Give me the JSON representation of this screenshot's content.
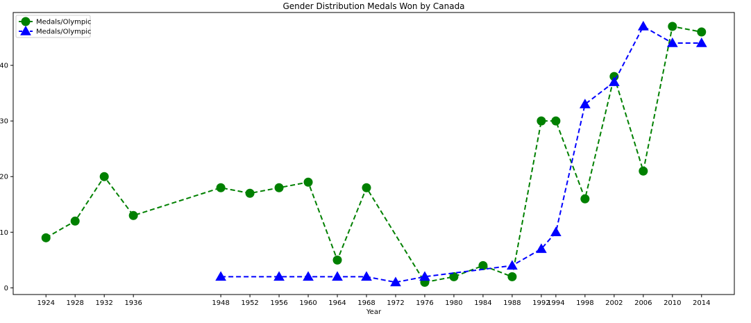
{
  "chart_data": {
    "type": "line",
    "title": "Gender Distribution Medals Won by Canada",
    "xlabel": "Year",
    "ylabel": "",
    "x_ticks": [
      "1924",
      "1928",
      "1932",
      "1936",
      "1948",
      "1952",
      "1956",
      "1960",
      "1964",
      "1968",
      "1972",
      "1976",
      "1980",
      "1984",
      "1988",
      "1992",
      "1994",
      "1998",
      "2002",
      "2006",
      "2010",
      "2014"
    ],
    "y_ticks": [
      "0",
      "10",
      "20",
      "30",
      "40"
    ],
    "ylim": [
      -1.2,
      49.5
    ],
    "xlim": [
      1919.5,
      2018.5
    ],
    "grid": false,
    "legend": "top-left",
    "series": [
      {
        "name": "Medals/Olympic",
        "color": "#008000",
        "marker": "circle",
        "linestyle": "dashed",
        "points": [
          {
            "x": 1924,
            "y": 9
          },
          {
            "x": 1928,
            "y": 12
          },
          {
            "x": 1932,
            "y": 20
          },
          {
            "x": 1936,
            "y": 13
          },
          {
            "x": 1948,
            "y": 18
          },
          {
            "x": 1952,
            "y": 17
          },
          {
            "x": 1956,
            "y": 18
          },
          {
            "x": 1960,
            "y": 19
          },
          {
            "x": 1964,
            "y": 5
          },
          {
            "x": 1968,
            "y": 18
          },
          {
            "x": 1976,
            "y": 1
          },
          {
            "x": 1980,
            "y": 2
          },
          {
            "x": 1984,
            "y": 4
          },
          {
            "x": 1988,
            "y": 2
          },
          {
            "x": 1992,
            "y": 30
          },
          {
            "x": 1994,
            "y": 30
          },
          {
            "x": 1998,
            "y": 16
          },
          {
            "x": 2002,
            "y": 38
          },
          {
            "x": 2006,
            "y": 21
          },
          {
            "x": 2010,
            "y": 47
          },
          {
            "x": 2014,
            "y": 46
          }
        ]
      },
      {
        "name": "Medals/Olympic",
        "color": "#0000ff",
        "marker": "triangle",
        "linestyle": "dashed",
        "points": [
          {
            "x": 1948,
            "y": 2
          },
          {
            "x": 1956,
            "y": 2
          },
          {
            "x": 1960,
            "y": 2
          },
          {
            "x": 1964,
            "y": 2
          },
          {
            "x": 1968,
            "y": 2
          },
          {
            "x": 1972,
            "y": 1
          },
          {
            "x": 1976,
            "y": 2
          },
          {
            "x": 1988,
            "y": 4
          },
          {
            "x": 1992,
            "y": 7
          },
          {
            "x": 1994,
            "y": 10
          },
          {
            "x": 1998,
            "y": 33
          },
          {
            "x": 2002,
            "y": 37
          },
          {
            "x": 2006,
            "y": 47
          },
          {
            "x": 2010,
            "y": 44
          },
          {
            "x": 2014,
            "y": 44
          }
        ]
      }
    ]
  }
}
